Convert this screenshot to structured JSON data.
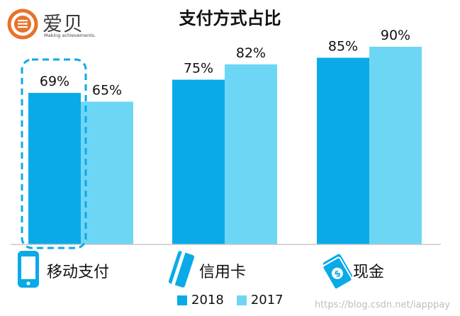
{
  "logo": {
    "word": "爱贝",
    "tagline": "Making achievements."
  },
  "colors": {
    "series_2018": "#0AAAE8",
    "series_2017": "#6ED6F5",
    "highlight": "#0AAAE8",
    "logo_ring": "#E8722A"
  },
  "icons": {
    "mobile": "mobile-phone-icon",
    "card": "credit-card-icon",
    "cash": "cash-icon"
  },
  "chart_data": {
    "type": "bar",
    "title": "支付方式占比",
    "categories": [
      "移动支付",
      "信用卡",
      "现金"
    ],
    "series": [
      {
        "name": "2018",
        "values": [
          69,
          75,
          85
        ],
        "labels": [
          "69%",
          "75%",
          "85%"
        ]
      },
      {
        "name": "2017",
        "values": [
          65,
          82,
          90
        ],
        "labels": [
          "65%",
          "82%",
          "90%"
        ]
      }
    ],
    "ylim": [
      0,
      100
    ],
    "grid": false,
    "legend_position": "bottom",
    "highlighted_category": "移动支付"
  },
  "watermark": "https://blog.csdn.net/iapppay"
}
